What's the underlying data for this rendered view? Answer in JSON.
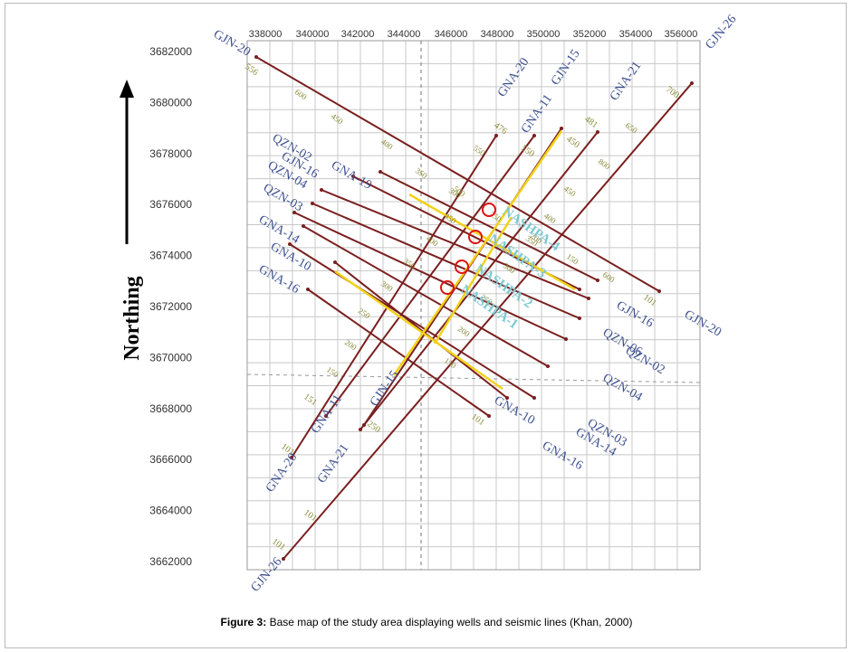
{
  "figure": {
    "caption_label": "Figure 3:",
    "caption_text": "Base map of the study area displaying wells and seismic lines (Khan, 2000)"
  },
  "axes": {
    "y_title": "Northing",
    "x_ticks": [
      "338000",
      "340000",
      "342000",
      "344000",
      "346000",
      "348000",
      "350000",
      "352000",
      "354000",
      "356000"
    ],
    "y_ticks": [
      "3682000",
      "3680000",
      "3678000",
      "3676000",
      "3674000",
      "3672000",
      "3670000",
      "3668000",
      "3666000",
      "3664000",
      "3662000"
    ]
  },
  "colors": {
    "seismic_line": "#7a1f1f",
    "yellow_line": "#f2d21a",
    "line_label": "#3c4f8f",
    "shotpoint_label": "#8a8a3a",
    "well_label": "#7ec8d0",
    "well_circle": "#e01010",
    "grid": "#c8c8c8"
  },
  "map_data": {
    "seismic_lines": [
      {
        "label_a": "GJN-20",
        "label_b": "GJN-20",
        "sp_a": "556",
        "sp_b": "101"
      },
      {
        "label_a": "GJN-26",
        "label_b": "GJN-26",
        "sp_a": "101",
        "sp_b": "700"
      },
      {
        "label_a": "GNA-20",
        "label_b": "GNA-20",
        "sp_a": "101",
        "sp_b": "476"
      },
      {
        "label_a": "GNA-21",
        "label_b": "GNA-21",
        "sp_a": "101",
        "sp_b": "481"
      },
      {
        "label_a": "GJN-15",
        "label_b": "GJN-15",
        "sp_a": "250",
        "sp_b": "550"
      },
      {
        "label_a": "GNA-11",
        "label_b": "GNA-11",
        "sp_a": "151",
        "sp_b": "450"
      },
      {
        "label_a": "QZN-02",
        "label_b": "QZN-02",
        "sp_a": "",
        "sp_b": ""
      },
      {
        "label_a": "QZN-04",
        "label_b": "QZN-04",
        "sp_a": "",
        "sp_b": ""
      },
      {
        "label_a": "QZN-03",
        "label_b": "QZN-03",
        "sp_a": "",
        "sp_b": ""
      },
      {
        "label_a": "QZN-06",
        "label_b": "QZN-06",
        "sp_a": "",
        "sp_b": ""
      },
      {
        "label_a": "GJN-16",
        "label_b": "GJN-16",
        "sp_a": "",
        "sp_b": ""
      },
      {
        "label_a": "GNA-19",
        "label_b": "GNA-19",
        "sp_a": "",
        "sp_b": ""
      },
      {
        "label_a": "GNA-14",
        "label_b": "GNA-14",
        "sp_a": "",
        "sp_b": ""
      },
      {
        "label_a": "GNA-10",
        "label_b": "GNA-10",
        "sp_a": "",
        "sp_b": ""
      },
      {
        "label_a": "GNA-16",
        "label_b": "GNA-16",
        "sp_a": "",
        "sp_b": "101"
      }
    ],
    "wells": [
      {
        "label": "NASHPA-4"
      },
      {
        "label": "NASHPA-3"
      },
      {
        "label": "NASHPA-2"
      },
      {
        "label": "NASHPA-1"
      }
    ],
    "shotpoint_labels": [
      "600",
      "450",
      "400",
      "350",
      "300",
      "250",
      "200",
      "150",
      "600",
      "550",
      "500",
      "450",
      "400",
      "350",
      "300",
      "250",
      "200",
      "150",
      "650",
      "800",
      "450",
      "400",
      "350",
      "300",
      "250",
      "200",
      "150"
    ]
  }
}
